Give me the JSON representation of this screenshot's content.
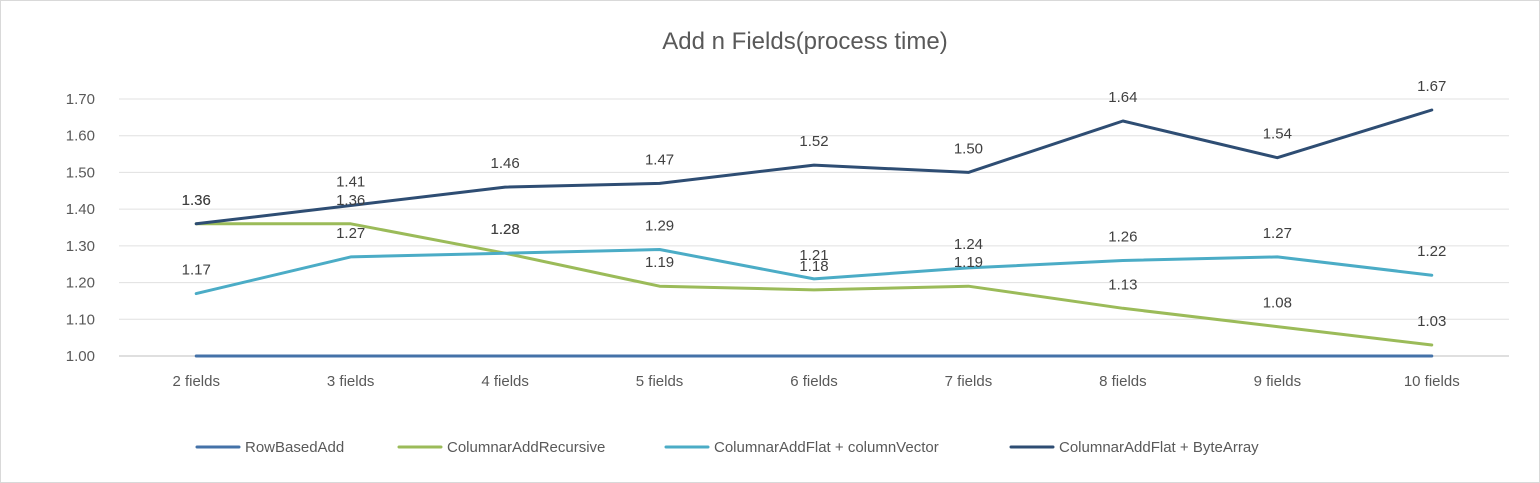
{
  "chart_data": {
    "type": "line",
    "title": "Add n Fields(process time)",
    "xlabel": "",
    "ylabel": "",
    "categories": [
      "2 fields",
      "3 fields",
      "4 fields",
      "5 fields",
      "6 fields",
      "7 fields",
      "8 fields",
      "9 fields",
      "10 fields"
    ],
    "ylim": [
      1.0,
      1.7
    ],
    "yticks": [
      "1.00",
      "1.10",
      "1.20",
      "1.30",
      "1.40",
      "1.50",
      "1.60",
      "1.70"
    ],
    "grid": true,
    "legend_position": "bottom",
    "series": [
      {
        "name": "RowBasedAdd",
        "color": "#4472a8",
        "values": [
          1.0,
          1.0,
          1.0,
          1.0,
          1.0,
          1.0,
          1.0,
          1.0,
          1.0
        ],
        "labels": [
          "",
          "",
          "",
          "",
          "",
          "",
          "",
          "",
          ""
        ],
        "label_position": "none"
      },
      {
        "name": "ColumnarAddRecursive",
        "color": "#9bbb59",
        "values": [
          1.36,
          1.36,
          1.28,
          1.19,
          1.18,
          1.19,
          1.13,
          1.08,
          1.03
        ],
        "labels": [
          "1.36",
          "1.36",
          "1.28",
          "1.19",
          "1.18",
          "1.19",
          "1.13",
          "1.08",
          "1.03"
        ],
        "label_position": "above"
      },
      {
        "name": "ColumnarAddFlat + columnVector",
        "color": "#4bacc6",
        "values": [
          1.17,
          1.27,
          1.28,
          1.29,
          1.21,
          1.24,
          1.26,
          1.27,
          1.22
        ],
        "labels": [
          "1.17",
          "1.27",
          "1.28",
          "1.29",
          "1.21",
          "1.24",
          "1.26",
          "1.27",
          "1.22"
        ],
        "label_position": "above"
      },
      {
        "name": "ColumnarAddFlat + ByteArray",
        "color": "#2e4d73",
        "values": [
          1.36,
          1.41,
          1.46,
          1.47,
          1.52,
          1.5,
          1.64,
          1.54,
          1.67
        ],
        "labels": [
          "1.36",
          "1.41",
          "1.46",
          "1.47",
          "1.52",
          "1.50",
          "1.64",
          "1.54",
          "1.67"
        ],
        "label_position": "above"
      }
    ]
  }
}
